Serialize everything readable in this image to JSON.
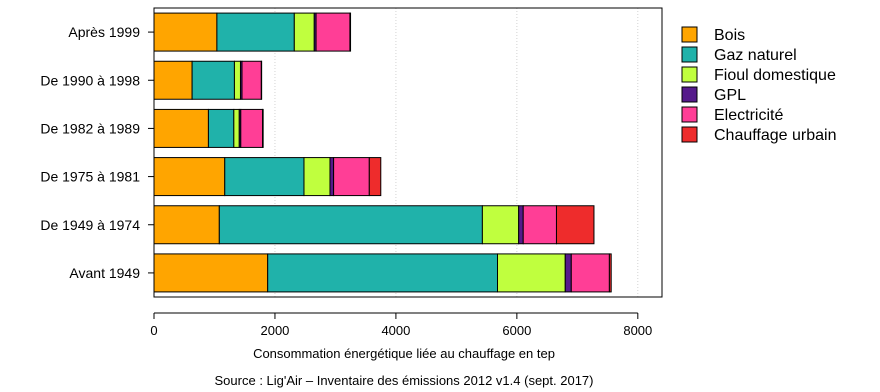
{
  "chart_data": {
    "type": "bar",
    "orientation": "horizontal",
    "stacked": true,
    "categories": [
      "Avant 1949",
      "De 1949 à 1974",
      "De 1975 à 1981",
      "De 1982 à 1989",
      "De 1990 à 1998",
      "Après 1999"
    ],
    "series": [
      {
        "name": "Bois",
        "color": "#ffa500",
        "values": [
          1880,
          1080,
          1170,
          900,
          630,
          1040
        ]
      },
      {
        "name": "Gaz naturel",
        "color": "#20b2aa",
        "values": [
          3800,
          4350,
          1310,
          420,
          700,
          1280
        ]
      },
      {
        "name": "Fioul domestique",
        "color": "#c0ff3e",
        "values": [
          1120,
          600,
          430,
          90,
          100,
          330
        ]
      },
      {
        "name": "GPL",
        "color": "#551a8b",
        "values": [
          100,
          75,
          60,
          25,
          25,
          30
        ]
      },
      {
        "name": "Electricité",
        "color": "#ff3e96",
        "values": [
          630,
          550,
          590,
          360,
          320,
          560
        ]
      },
      {
        "name": "Chauffage urbain",
        "color": "#ee2c2c",
        "values": [
          30,
          620,
          190,
          10,
          5,
          10
        ]
      }
    ],
    "xlabel": "Consommation énergétique liée au chauffage en tep",
    "ylabel": "",
    "xlim": [
      0,
      8400
    ],
    "xticks": [
      "0",
      "2000",
      "4000",
      "6000",
      "8000"
    ],
    "grid": "vertical dotted",
    "legend": "right",
    "source": "Source : Lig'Air – Inventaire des émissions 2012 v1.4 (sept. 2017)"
  }
}
